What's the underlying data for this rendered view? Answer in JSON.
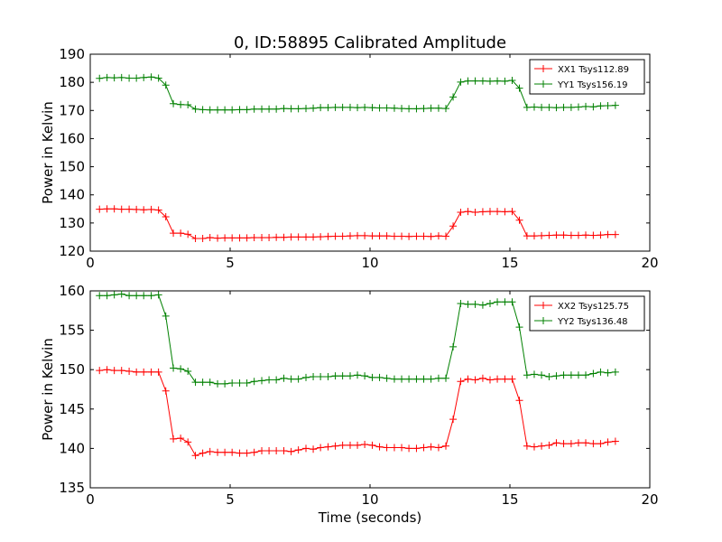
{
  "chart_data": [
    {
      "type": "line",
      "title": "0, ID:58895 Calibrated Amplitude",
      "xlabel": "",
      "ylabel": "Power in Kelvin",
      "xlim": [
        0,
        20
      ],
      "ylim": [
        120,
        190
      ],
      "xticks": [
        0,
        5,
        10,
        15,
        20
      ],
      "yticks": [
        120,
        130,
        140,
        150,
        160,
        170,
        180,
        190
      ],
      "legend_position": "top-right",
      "grid": false,
      "x": [
        0.33,
        0.6,
        0.86,
        1.12,
        1.39,
        1.65,
        1.91,
        2.18,
        2.44,
        2.7,
        2.97,
        3.23,
        3.49,
        3.76,
        4.02,
        4.28,
        4.55,
        4.81,
        5.07,
        5.34,
        5.6,
        5.86,
        6.13,
        6.39,
        6.65,
        6.92,
        7.18,
        7.44,
        7.71,
        7.97,
        8.23,
        8.5,
        8.76,
        9.02,
        9.29,
        9.55,
        9.81,
        10.08,
        10.34,
        10.6,
        10.87,
        11.13,
        11.39,
        11.66,
        11.92,
        12.18,
        12.45,
        12.71,
        12.97,
        13.24,
        13.5,
        13.76,
        14.03,
        14.29,
        14.55,
        14.82,
        15.08,
        15.34,
        15.61,
        15.87,
        16.13,
        16.4,
        16.66,
        16.92,
        17.19,
        17.45,
        17.71,
        17.98,
        18.24,
        18.5,
        18.77
      ],
      "series": [
        {
          "name": "XX1 Tsys112.89",
          "color": "#ff0000",
          "values": [
            134.9,
            135.0,
            135.0,
            134.9,
            134.9,
            134.8,
            134.7,
            134.8,
            134.6,
            132.2,
            126.4,
            126.4,
            126.0,
            124.5,
            124.5,
            124.8,
            124.6,
            124.7,
            124.7,
            124.7,
            124.7,
            124.8,
            124.8,
            124.8,
            124.9,
            124.9,
            125.0,
            125.0,
            125.0,
            125.0,
            125.1,
            125.2,
            125.3,
            125.3,
            125.4,
            125.5,
            125.5,
            125.4,
            125.4,
            125.4,
            125.3,
            125.3,
            125.2,
            125.3,
            125.3,
            125.2,
            125.4,
            125.3,
            128.9,
            133.8,
            134.1,
            133.8,
            134.0,
            134.1,
            134.1,
            134.0,
            134.1,
            131.0,
            125.4,
            125.4,
            125.5,
            125.6,
            125.7,
            125.7,
            125.6,
            125.6,
            125.7,
            125.6,
            125.7,
            125.9,
            125.9
          ]
        },
        {
          "name": "YY1 Tsys156.19",
          "color": "#008000",
          "values": [
            181.4,
            181.7,
            181.6,
            181.7,
            181.5,
            181.5,
            181.7,
            181.9,
            181.5,
            179.0,
            172.4,
            172.1,
            172.0,
            170.5,
            170.3,
            170.2,
            170.2,
            170.2,
            170.2,
            170.3,
            170.3,
            170.5,
            170.5,
            170.5,
            170.5,
            170.7,
            170.6,
            170.6,
            170.7,
            170.8,
            171.0,
            171.0,
            171.1,
            171.1,
            171.1,
            171.0,
            171.1,
            171.0,
            170.9,
            170.9,
            170.8,
            170.7,
            170.6,
            170.6,
            170.7,
            170.8,
            170.8,
            170.7,
            174.8,
            180.1,
            180.5,
            180.5,
            180.5,
            180.4,
            180.5,
            180.4,
            180.7,
            177.9,
            171.1,
            171.2,
            171.1,
            171.1,
            171.0,
            171.1,
            171.1,
            171.2,
            171.4,
            171.3,
            171.6,
            171.7,
            171.8
          ]
        }
      ]
    },
    {
      "type": "line",
      "title": "",
      "xlabel": "Time (seconds)",
      "ylabel": "Power in Kelvin",
      "xlim": [
        0,
        20
      ],
      "ylim": [
        135,
        160
      ],
      "xticks": [
        0,
        5,
        10,
        15,
        20
      ],
      "yticks": [
        135,
        140,
        145,
        150,
        155,
        160
      ],
      "legend_position": "top-right",
      "grid": false,
      "x": [
        0.33,
        0.6,
        0.86,
        1.12,
        1.39,
        1.65,
        1.91,
        2.18,
        2.44,
        2.7,
        2.97,
        3.23,
        3.49,
        3.76,
        4.02,
        4.28,
        4.55,
        4.81,
        5.07,
        5.34,
        5.6,
        5.86,
        6.13,
        6.39,
        6.65,
        6.92,
        7.18,
        7.44,
        7.71,
        7.97,
        8.23,
        8.5,
        8.76,
        9.02,
        9.29,
        9.55,
        9.81,
        10.08,
        10.34,
        10.6,
        10.87,
        11.13,
        11.39,
        11.66,
        11.92,
        12.18,
        12.45,
        12.71,
        12.97,
        13.24,
        13.5,
        13.76,
        14.03,
        14.29,
        14.55,
        14.82,
        15.08,
        15.34,
        15.61,
        15.87,
        16.13,
        16.4,
        16.66,
        16.92,
        17.19,
        17.45,
        17.71,
        17.98,
        18.24,
        18.5,
        18.77
      ],
      "series": [
        {
          "name": "XX2 Tsys125.75",
          "color": "#ff0000",
          "values": [
            149.9,
            150.0,
            149.9,
            149.9,
            149.8,
            149.7,
            149.7,
            149.7,
            149.7,
            147.3,
            141.2,
            141.3,
            140.8,
            139.1,
            139.4,
            139.6,
            139.5,
            139.5,
            139.5,
            139.4,
            139.4,
            139.5,
            139.7,
            139.7,
            139.7,
            139.7,
            139.6,
            139.8,
            140.0,
            139.9,
            140.1,
            140.2,
            140.3,
            140.4,
            140.4,
            140.4,
            140.5,
            140.4,
            140.2,
            140.1,
            140.1,
            140.1,
            140.0,
            140.0,
            140.1,
            140.2,
            140.1,
            140.3,
            143.7,
            148.5,
            148.8,
            148.7,
            148.9,
            148.7,
            148.8,
            148.8,
            148.8,
            146.1,
            140.3,
            140.2,
            140.3,
            140.4,
            140.7,
            140.6,
            140.6,
            140.7,
            140.7,
            140.6,
            140.6,
            140.8,
            140.9
          ]
        },
        {
          "name": "YY2 Tsys136.48",
          "color": "#008000",
          "values": [
            159.4,
            159.4,
            159.5,
            159.6,
            159.4,
            159.4,
            159.4,
            159.4,
            159.5,
            156.8,
            150.2,
            150.1,
            149.8,
            148.4,
            148.4,
            148.4,
            148.2,
            148.2,
            148.3,
            148.3,
            148.3,
            148.5,
            148.6,
            148.7,
            148.7,
            148.9,
            148.8,
            148.8,
            149.0,
            149.1,
            149.1,
            149.1,
            149.2,
            149.2,
            149.2,
            149.3,
            149.2,
            149.0,
            149.0,
            148.9,
            148.8,
            148.8,
            148.8,
            148.8,
            148.8,
            148.8,
            148.9,
            148.9,
            152.9,
            158.4,
            158.3,
            158.3,
            158.2,
            158.4,
            158.6,
            158.6,
            158.6,
            155.4,
            149.3,
            149.4,
            149.3,
            149.1,
            149.2,
            149.3,
            149.3,
            149.3,
            149.3,
            149.5,
            149.7,
            149.6,
            149.7
          ]
        }
      ]
    }
  ]
}
